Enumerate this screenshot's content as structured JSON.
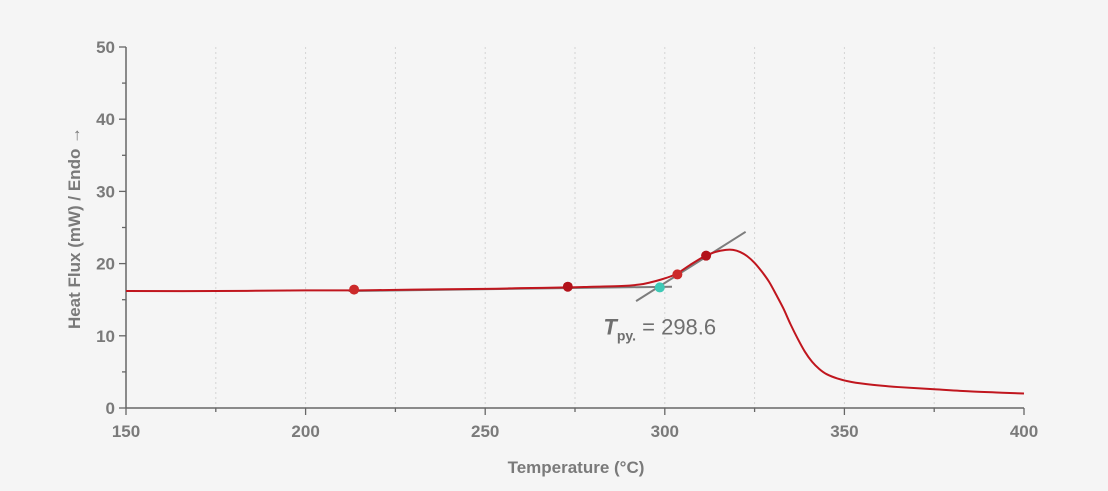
{
  "chart_data": {
    "type": "line",
    "xlabel": "Temperature (°C)",
    "ylabel": "Heat Flux (mW) / Endo →",
    "xlim": [
      150,
      400
    ],
    "ylim": [
      0,
      50
    ],
    "xticks": [
      150,
      200,
      250,
      300,
      350,
      400
    ],
    "yticks": [
      0,
      10,
      20,
      30,
      40,
      50
    ],
    "grid": "vertical dotted gridlines at x minor ticks",
    "series": [
      {
        "color": "#c0161e",
        "x": [
          150,
          175,
          200,
          215,
          230,
          250,
          260,
          273,
          280,
          288,
          293,
          296,
          299,
          302,
          304,
          307,
          311,
          314,
          317,
          319,
          321,
          323,
          325,
          327,
          329,
          331,
          333,
          335,
          337,
          339,
          341,
          343,
          345,
          348,
          352,
          358,
          365,
          375,
          385,
          395,
          400
        ],
        "y": [
          16.2,
          16.2,
          16.3,
          16.3,
          16.4,
          16.5,
          16.6,
          16.7,
          16.8,
          16.9,
          17.1,
          17.4,
          17.8,
          18.3,
          18.8,
          19.8,
          21.0,
          21.6,
          21.9,
          21.9,
          21.6,
          21.0,
          20.1,
          18.9,
          17.5,
          15.7,
          13.8,
          11.6,
          9.6,
          7.8,
          6.4,
          5.4,
          4.7,
          4.1,
          3.6,
          3.2,
          2.9,
          2.6,
          2.3,
          2.1,
          2.0
        ]
      }
    ],
    "tangent_lines": [
      {
        "color": "#7d7d7d",
        "x": [
          212,
          302
        ],
        "y": [
          16.2,
          16.8
        ]
      },
      {
        "color": "#7d7d7d",
        "x": [
          292,
          322.5
        ],
        "y": [
          14.8,
          24.4
        ]
      }
    ],
    "markers": [
      {
        "color": "#cc2a2a",
        "x": 213.5,
        "y": 16.4
      },
      {
        "color": "#b3121a",
        "x": 273,
        "y": 16.8
      },
      {
        "color": "#cc2a2a",
        "x": 303.5,
        "y": 18.5
      },
      {
        "color": "#b3121a",
        "x": 311.5,
        "y": 21.1
      },
      {
        "color": "#3ec9b6",
        "x": 298.6,
        "y": 16.7
      }
    ],
    "annotation": {
      "var": "T",
      "sub": "py.",
      "text": " = 298.6",
      "x": 298.6,
      "y": 10.2
    },
    "colors": {
      "axis": "#666666",
      "grid": "#d4d4d4",
      "text": "#7a7a7a"
    }
  }
}
